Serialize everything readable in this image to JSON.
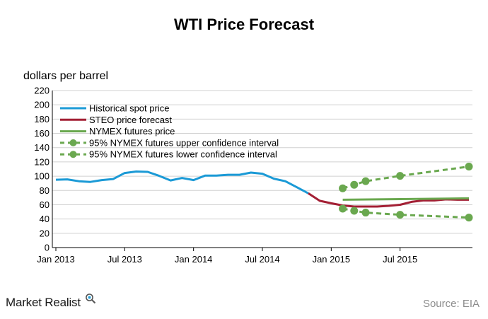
{
  "page": {
    "brand": "Market Realist",
    "brand_icon": "magnifier-icon",
    "source": "Source: EIA"
  },
  "chart_data": {
    "type": "line",
    "title": "WTI Price Forecast",
    "ylabel": "dollars per barrel",
    "xlabel": "",
    "ylim": [
      0,
      220
    ],
    "yticks": [
      "0",
      "20",
      "40",
      "60",
      "80",
      "100",
      "120",
      "140",
      "160",
      "180",
      "200",
      "220"
    ],
    "x_ticks": [
      {
        "label": "Jan 2013",
        "t": 0
      },
      {
        "label": "Jul 2013",
        "t": 6
      },
      {
        "label": "Jan 2014",
        "t": 12
      },
      {
        "label": "Jul 2014",
        "t": 18
      },
      {
        "label": "Jan 2015",
        "t": 24
      },
      {
        "label": "Jul 2015",
        "t": 30
      }
    ],
    "xlim": [
      0,
      36
    ],
    "grid": true,
    "legend_position": "top-left",
    "series": [
      {
        "name": "Historical spot price",
        "color": "#1b9ad6",
        "style": "solid",
        "points": [
          [
            0,
            95
          ],
          [
            1,
            95.5
          ],
          [
            2,
            93
          ],
          [
            3,
            92
          ],
          [
            4,
            94.5
          ],
          [
            5,
            96
          ],
          [
            6,
            104.5
          ],
          [
            7,
            106.5
          ],
          [
            8,
            106
          ],
          [
            9,
            100.5
          ],
          [
            10,
            94
          ],
          [
            11,
            97.5
          ],
          [
            12,
            94.5
          ],
          [
            13,
            100.8
          ],
          [
            14,
            100.8
          ],
          [
            15,
            102
          ],
          [
            16,
            102
          ],
          [
            17,
            105
          ],
          [
            18,
            103.5
          ],
          [
            19,
            96.5
          ],
          [
            20,
            93
          ],
          [
            21,
            84.5
          ],
          [
            22,
            76
          ]
        ]
      },
      {
        "name": "STEO price forecast",
        "color": "#a31f34",
        "style": "solid",
        "points": [
          [
            22,
            76
          ],
          [
            23,
            65.5
          ],
          [
            24,
            62
          ],
          [
            25,
            59
          ],
          [
            26,
            57.5
          ],
          [
            27,
            57.5
          ],
          [
            28,
            57.5
          ],
          [
            29,
            58.5
          ],
          [
            30,
            60
          ],
          [
            31,
            64
          ],
          [
            32,
            66
          ],
          [
            33,
            66
          ],
          [
            34,
            67.5
          ],
          [
            35,
            67
          ],
          [
            36,
            67
          ]
        ]
      },
      {
        "name": "NYMEX futures price",
        "color": "#6aa84f",
        "style": "solid",
        "points": [
          [
            25,
            67
          ],
          [
            36,
            69
          ]
        ]
      },
      {
        "name": "95% NYMEX futures upper confidence interval",
        "color": "#6aa84f",
        "style": "dashed-markers",
        "points": [
          [
            25,
            83
          ],
          [
            26,
            88
          ],
          [
            27,
            93
          ],
          [
            30,
            100.5
          ],
          [
            36,
            113.5
          ]
        ],
        "markers": [
          [
            25,
            83
          ],
          [
            26,
            88
          ],
          [
            27,
            93
          ],
          [
            30,
            100.5
          ],
          [
            36,
            113.5
          ]
        ]
      },
      {
        "name": "95% NYMEX futures lower confidence interval",
        "color": "#6aa84f",
        "style": "dashed-markers",
        "points": [
          [
            25,
            54.5
          ],
          [
            26,
            51.5
          ],
          [
            27,
            49
          ],
          [
            30,
            46
          ],
          [
            36,
            42
          ]
        ],
        "markers": [
          [
            25,
            54.5
          ],
          [
            26,
            51.5
          ],
          [
            27,
            49
          ],
          [
            30,
            46
          ],
          [
            36,
            42
          ]
        ]
      }
    ]
  }
}
